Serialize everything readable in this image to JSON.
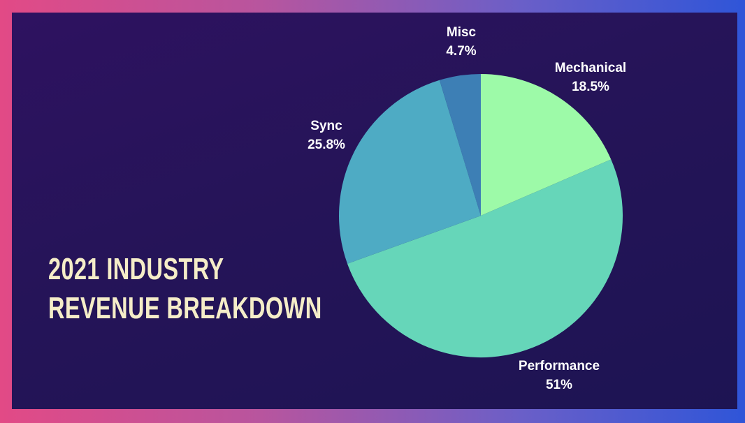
{
  "title_lines": [
    "2021 INDUSTRY",
    "REVENUE BREAKDOWN"
  ],
  "colors": {
    "Mechanical": "#9dfaa8",
    "Performance": "#66d6b9",
    "Sync": "#4eabc4",
    "Misc": "#3d7fb5"
  },
  "chart_data": {
    "type": "pie",
    "title": "2021 INDUSTRY REVENUE BREAKDOWN",
    "slices": [
      {
        "label": "Mechanical",
        "value": 18.5,
        "display": "18.5%"
      },
      {
        "label": "Performance",
        "value": 51,
        "display": "51%"
      },
      {
        "label": "Sync",
        "value": 25.8,
        "display": "25.8%"
      },
      {
        "label": "Misc",
        "value": 4.7,
        "display": "4.7%"
      }
    ],
    "start_angle": "12 o'clock",
    "direction": "clockwise",
    "legend": "none"
  }
}
